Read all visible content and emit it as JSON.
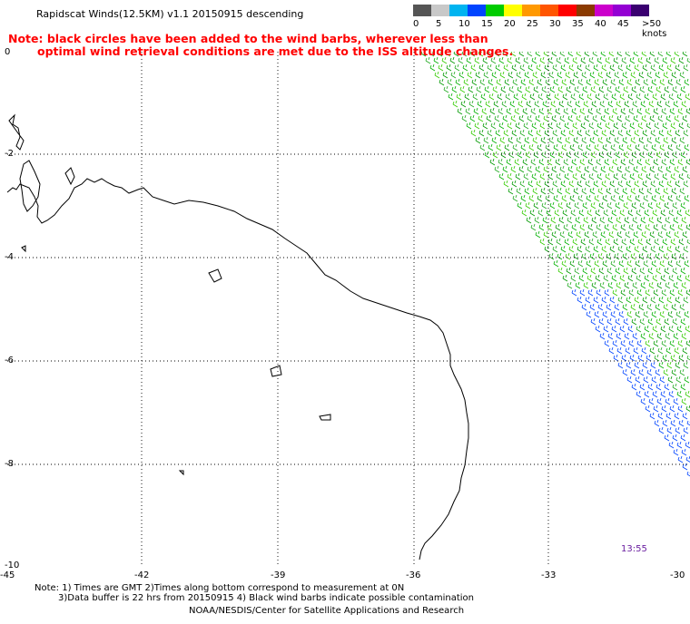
{
  "header": {
    "title": "Rapidscat Winds(12.5KM) v1.1 20150915 descending"
  },
  "legend": {
    "colors": [
      "#555555",
      "#c8c8c8",
      "#00b4f0",
      "#0044ff",
      "#00cc00",
      "#ffff00",
      "#ff9900",
      "#ff5500",
      "#ff0000",
      "#8b3a00",
      "#cc00cc",
      "#9400d3",
      "#3a0070"
    ],
    "labels": [
      "0",
      "5",
      "10",
      "15",
      "20",
      "25",
      "30",
      "35",
      "40",
      "45",
      ">50 knots"
    ]
  },
  "note": {
    "line1": "Note: black circles have been added to the wind barbs, wherever less than",
    "line2": "optimal wind retrieval conditions are met due to the ISS altitude changes."
  },
  "map": {
    "lon_ticks": [
      "-45",
      "-42",
      "-39",
      "-36",
      "-33",
      "-30"
    ],
    "lat_ticks": [
      "0",
      "-2",
      "-4",
      "-6",
      "-8",
      "-10"
    ],
    "pass_time": "13:55"
  },
  "footer": {
    "line1": "Note: 1) Times are GMT 2)Times along bottom correspond to measurement at 0N",
    "line2": "3)Data buffer is 22 hrs from 20150915 4) Black wind barbs indicate possible contamination",
    "line3": "NOAA/NESDIS/Center for Satellite Applications and Research"
  }
}
